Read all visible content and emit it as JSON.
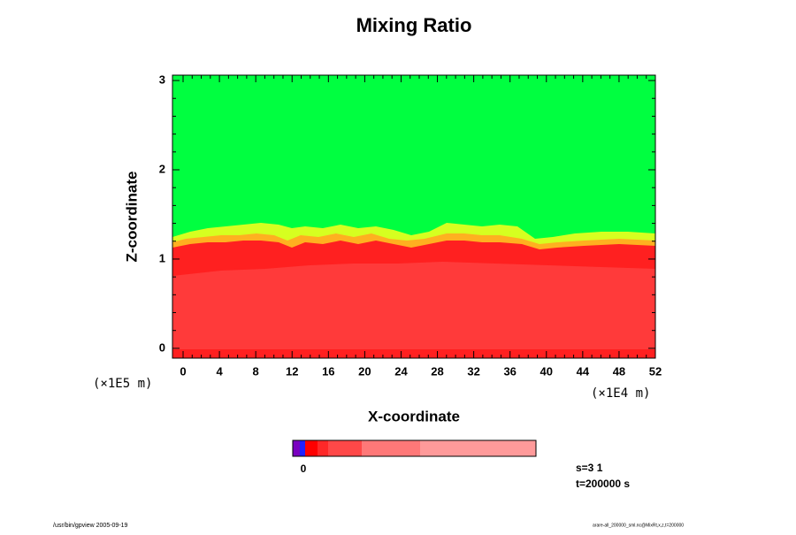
{
  "chart_data": {
    "type": "contour",
    "title": "Mixing Ratio",
    "x_label": "X-coordinate",
    "y_label": "Z-coordinate",
    "x_unit": "(×1E4 m)",
    "y_unit": "(×1E5 m)",
    "xlim": [
      -1.17,
      52
    ],
    "xticks": [
      0,
      4,
      8,
      12,
      16,
      20,
      24,
      28,
      32,
      36,
      40,
      44,
      48,
      52
    ],
    "ylim": [
      -0.11,
      3.06
    ],
    "yticks": [
      0,
      1,
      2,
      3
    ],
    "colorbar_tick": "0",
    "annotations": [
      "s=3 1",
      "t=200000 s"
    ],
    "footer_left": "/usr/bin/gpview 2005-09-19",
    "footer_right": "arare-all_200000_sml.nc@MixRt,x,z,t=200000"
  }
}
